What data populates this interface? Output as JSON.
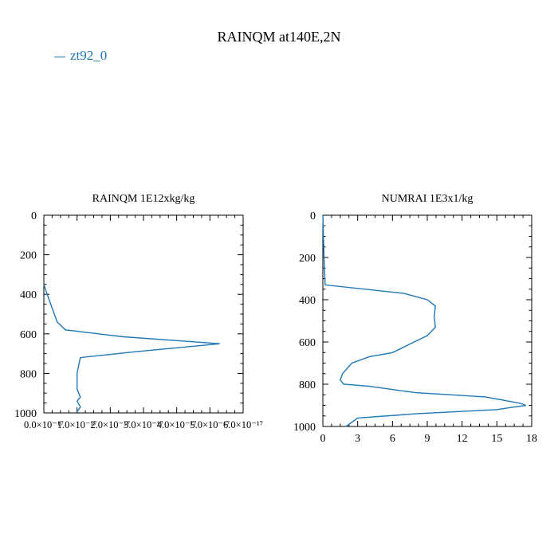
{
  "figure": {
    "title": "RAINQM at140E,2N",
    "legend": "zt92_0",
    "line_color": "#1f77b4"
  },
  "chart_data": [
    {
      "type": "line",
      "title": "RAINQM  1E12xkg/kg",
      "xlim": [
        0,
        6e-17
      ],
      "ylim": [
        1000,
        0
      ],
      "xticks": [
        0,
        1e-17,
        2e-17,
        3e-17,
        4e-17,
        5e-17,
        6e-17
      ],
      "xtick_labels": [
        "0.0×10⁻¹⁷",
        "1.0×10⁻¹⁷",
        "2.0×10⁻¹⁷",
        "3.0×10⁻¹⁷",
        "4.0×10⁻¹⁷",
        "5.0×10⁻¹⁷",
        "6.0×10⁻¹⁷"
      ],
      "yticks": [
        0,
        200,
        400,
        600,
        800,
        1000
      ],
      "ytick_labels": [
        "0",
        "200",
        "400",
        "600",
        "800",
        "1000"
      ],
      "series": [
        {
          "name": "zt92_0",
          "x": [
            0,
            1e-18,
            4e-18,
            6.5e-18,
            2.4e-17,
            5.3e-17,
            2.8e-17,
            1.1e-17,
            1e-17,
            1e-17,
            1.1e-17,
            1e-17,
            1.1e-17,
            1e-17
          ],
          "y": [
            350,
            400,
            540,
            580,
            615,
            650,
            690,
            720,
            800,
            880,
            920,
            940,
            970,
            995
          ]
        }
      ]
    },
    {
      "type": "line",
      "title": "NUMRAI  1E3x1/kg",
      "xlim": [
        0,
        18
      ],
      "ylim": [
        1000,
        0
      ],
      "xticks": [
        0,
        3,
        6,
        9,
        12,
        15,
        18
      ],
      "xtick_labels": [
        "0",
        "3",
        "6",
        "9",
        "12",
        "15",
        "18"
      ],
      "yticks": [
        0,
        200,
        400,
        600,
        800,
        1000
      ],
      "ytick_labels": [
        "0",
        "200",
        "400",
        "600",
        "800",
        "1000"
      ],
      "series": [
        {
          "name": "zt92_0",
          "x": [
            0,
            0.1,
            0.2,
            7,
            9,
            9.7,
            9.6,
            9.7,
            9,
            6,
            4,
            2.5,
            1.7,
            1.5,
            1.8,
            4,
            8,
            14,
            17,
            17.5,
            15,
            8,
            3,
            2
          ],
          "y": [
            0,
            200,
            330,
            370,
            400,
            430,
            480,
            530,
            570,
            650,
            670,
            700,
            750,
            780,
            800,
            810,
            840,
            860,
            890,
            900,
            920,
            940,
            960,
            1000
          ]
        }
      ]
    }
  ]
}
